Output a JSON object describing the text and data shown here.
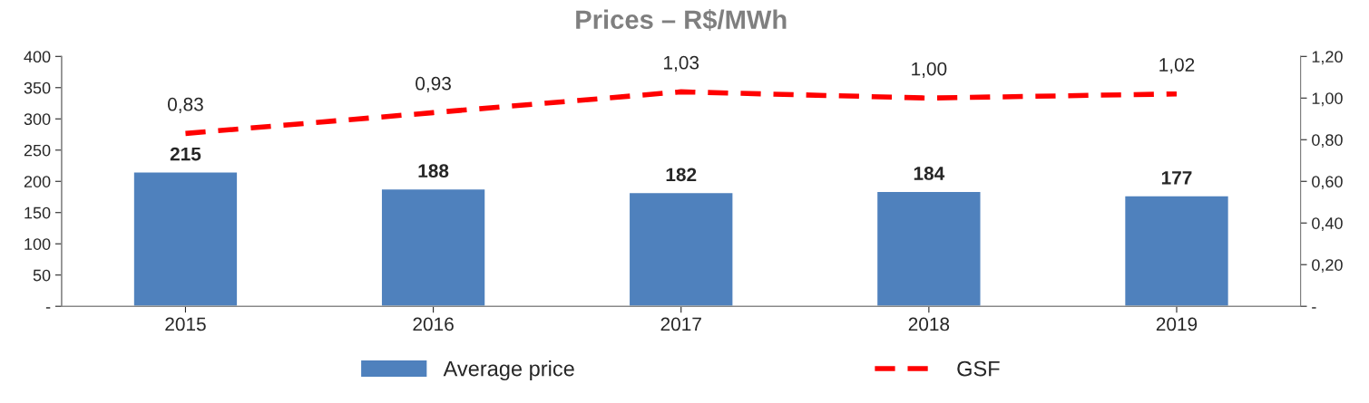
{
  "chart_data": {
    "type": "bar",
    "title": "Prices – R$/MWh",
    "categories": [
      "2015",
      "2016",
      "2017",
      "2018",
      "2019"
    ],
    "series": [
      {
        "name": "Average price",
        "color": "#4f81bd",
        "values": [
          215,
          188,
          182,
          184,
          177
        ],
        "data_labels": true
      },
      {
        "name": "GSF",
        "type": "line",
        "axis": "y2",
        "color": "#ff0000",
        "line_style": "dashed",
        "marker": "none",
        "values": [
          0.83,
          0.93,
          1.03,
          1.0,
          1.02
        ],
        "value_labels": [
          "0,83",
          "0,93",
          "1,03",
          "1,00",
          "1,02"
        ]
      }
    ],
    "ylim": [
      0,
      400
    ],
    "yticks": [
      {
        "value": 0,
        "label": "-"
      },
      50,
      100,
      150,
      200,
      250,
      300,
      350,
      400
    ],
    "y2lim": [
      0,
      1.2
    ],
    "y2ticks": [
      {
        "value": 0,
        "label": "-"
      },
      {
        "value": 0.2,
        "label": "0,20"
      },
      {
        "value": 0.4,
        "label": "0,40"
      },
      {
        "value": 0.6,
        "label": "0,60"
      },
      {
        "value": 0.8,
        "label": "0,80"
      },
      {
        "value": 1.0,
        "label": "1,00"
      },
      {
        "value": 1.2,
        "label": "1,20"
      }
    ],
    "grid": false,
    "legend": "bottom"
  }
}
